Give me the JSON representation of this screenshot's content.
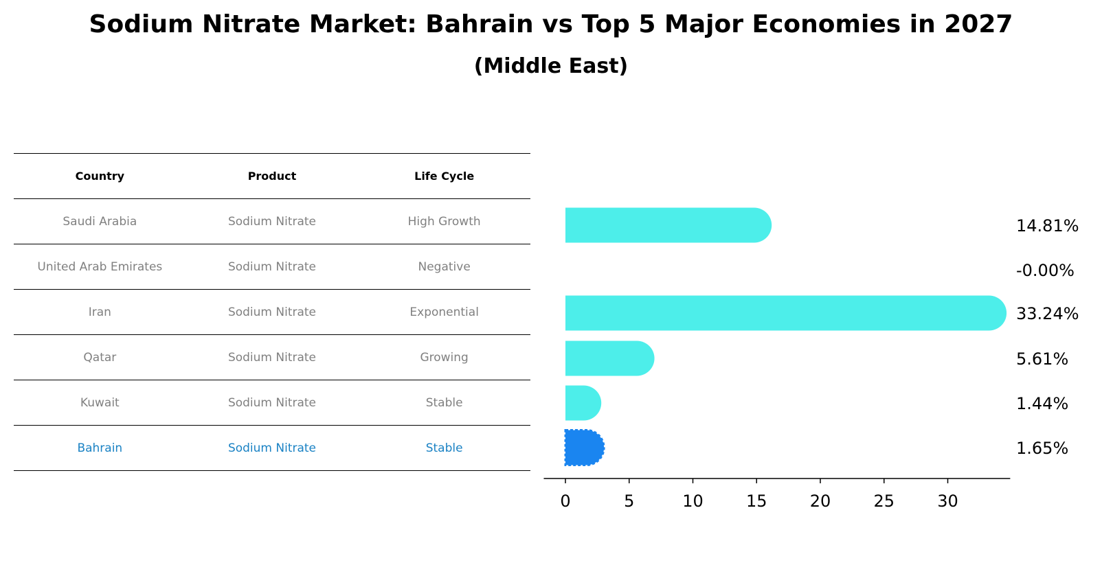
{
  "title": "Sodium Nitrate Market: Bahrain vs Top 5 Major Economies in 2027",
  "subtitle": "(Middle East)",
  "table": {
    "headers": [
      "Country",
      "Product",
      "Life Cycle"
    ],
    "rows": [
      {
        "country": "Saudi Arabia",
        "product": "Sodium Nitrate",
        "life_cycle": "High Growth"
      },
      {
        "country": "United Arab Emirates",
        "product": "Sodium Nitrate",
        "life_cycle": "Negative"
      },
      {
        "country": "Iran",
        "product": "Sodium Nitrate",
        "life_cycle": "Exponential"
      },
      {
        "country": "Qatar",
        "product": "Sodium Nitrate",
        "life_cycle": "Growing"
      },
      {
        "country": "Kuwait",
        "product": "Sodium Nitrate",
        "life_cycle": "Stable"
      },
      {
        "country": "Bahrain",
        "product": "Sodium Nitrate",
        "life_cycle": "Stable"
      }
    ]
  },
  "chart_data": {
    "type": "bar",
    "orientation": "horizontal",
    "categories": [
      "Saudi Arabia",
      "United Arab Emirates",
      "Iran",
      "Qatar",
      "Kuwait",
      "Bahrain"
    ],
    "values": [
      14.81,
      -0.0,
      33.24,
      5.61,
      1.44,
      1.65
    ],
    "value_labels": [
      "14.81%",
      "-0.00%",
      "33.24%",
      "5.61%",
      "1.44%",
      "1.65%"
    ],
    "highlight": "Bahrain",
    "colors": {
      "default": "#4deeea",
      "highlight": "#1a85f0"
    },
    "xticks": [
      "0",
      "5",
      "10",
      "15",
      "20",
      "25",
      "30"
    ],
    "xlim": [
      -1.7,
      34.9
    ],
    "grid": false
  }
}
